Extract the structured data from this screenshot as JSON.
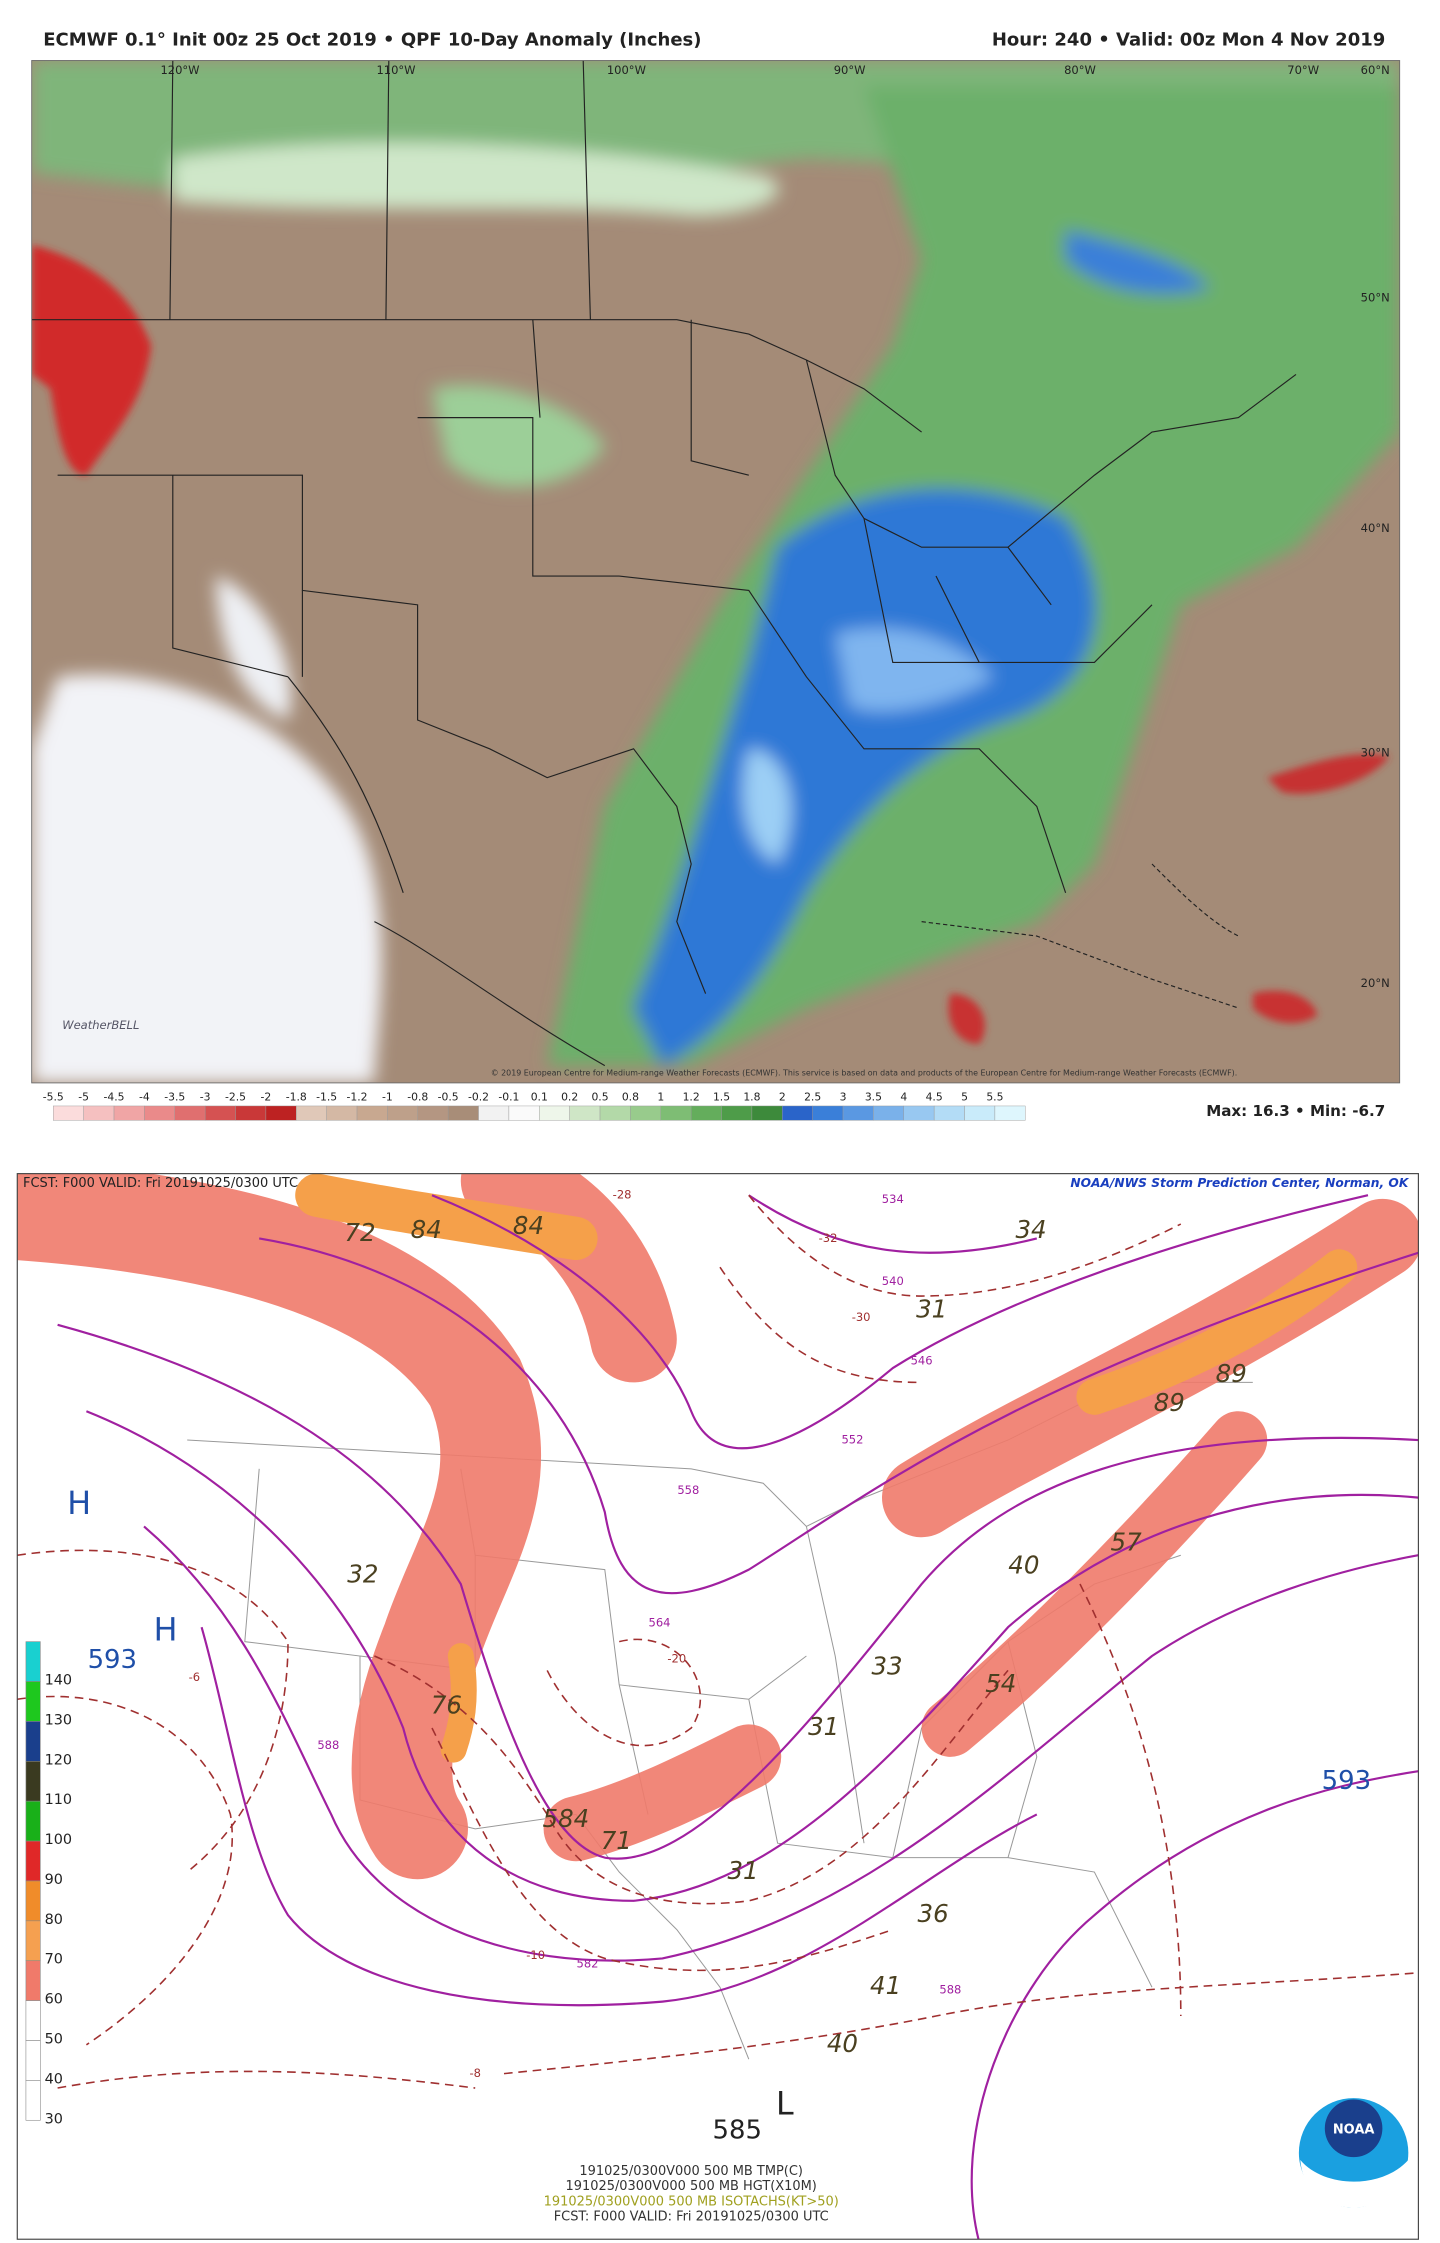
{
  "top_map": {
    "title": "ECMWF 0.1° Init 00z 25 Oct 2019 • QPF 10-Day Anomaly (Inches)",
    "header_right": "Hour: 240 • Valid: 00z Mon 4 Nov 2019",
    "longitudes": [
      "120°W",
      "110°W",
      "100°W",
      "90°W",
      "80°W",
      "70°W"
    ],
    "latitudes": [
      "60°N",
      "50°N",
      "40°N",
      "30°N",
      "20°N"
    ],
    "copyright": "© 2019 European Centre for Medium-range Weather Forecasts (ECMWF). This service is based on data and products of the European Centre for Medium-range Weather Forecasts (ECMWF).",
    "logo": "WeatherBELL",
    "colorbar": [
      -5.5,
      -5,
      -4.5,
      -4,
      -3.5,
      -3,
      -2.5,
      -2,
      -1.8,
      -1.5,
      -1.2,
      -1,
      -0.8,
      -0.5,
      -0.2,
      -0.1,
      0.1,
      0.2,
      0.5,
      0.8,
      1,
      1.2,
      1.5,
      1.8,
      2,
      2.5,
      3,
      3.5,
      4,
      4.5,
      5,
      5.5
    ],
    "max_min": "Max: 16.3 • Min: -6.7"
  },
  "bottom_map": {
    "valid_top": "FCST: F000  VALID: Fri 20191025/0300 UTC",
    "credit": "NOAA/NWS Storm Prediction Center, Norman, OK",
    "colorbar": [
      140,
      130,
      120,
      110,
      100,
      90,
      80,
      70,
      60,
      50,
      40,
      30
    ],
    "pressure_labels": [
      "H",
      "H",
      593,
      593,
      585,
      "L"
    ],
    "wind_labels": [
      72,
      84,
      84,
      34,
      31,
      89,
      89,
      32,
      76,
      584,
      71,
      31,
      33,
      31,
      40,
      57,
      54,
      41,
      40,
      36
    ],
    "contour_labels": [
      534,
      540,
      546,
      552,
      558,
      564,
      588,
      582,
      588,
      -32,
      -30,
      -28,
      -20,
      -6,
      -8,
      -10
    ],
    "footer": [
      "191025/0300V000 500 MB TMP(C)",
      "191025/0300V000 500 MB HGT(X10M)",
      "191025/0300V000 500 MB ISOTACHS(KT>50)",
      "FCST: F000  VALID: Fri 20191025/0300 UTC"
    ],
    "logo": "NOAA"
  }
}
